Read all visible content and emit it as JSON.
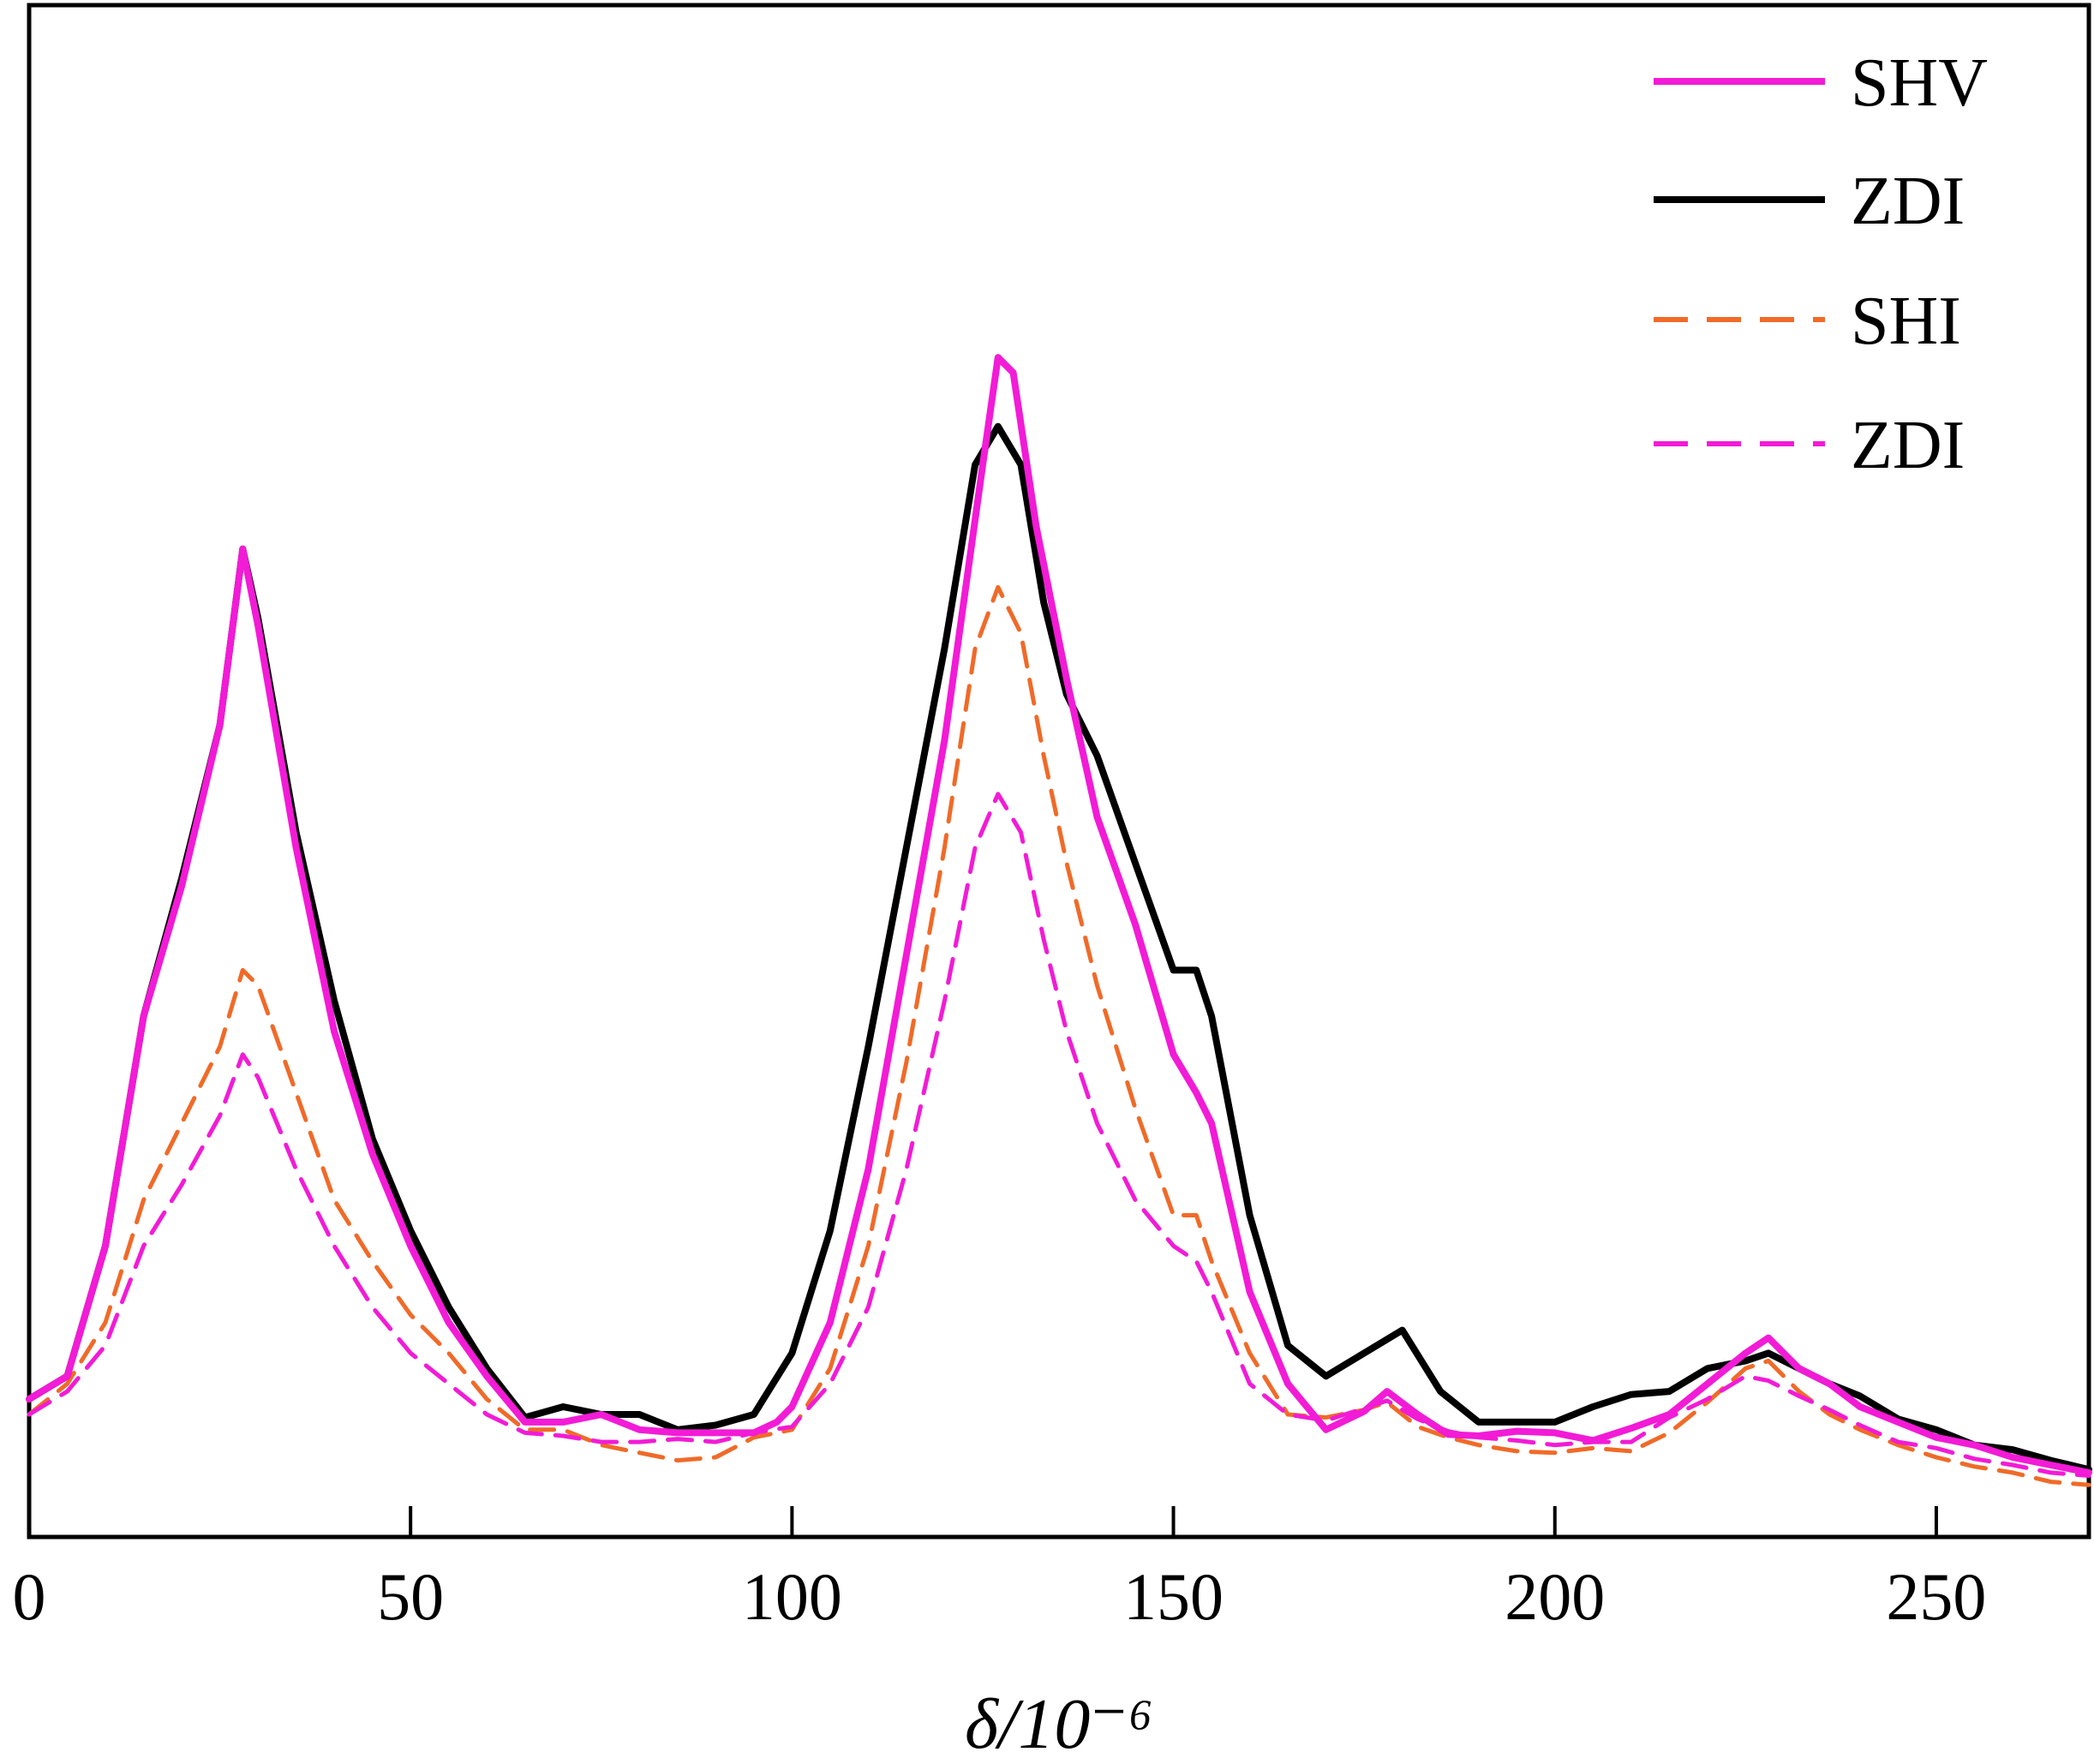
{
  "chart_data": {
    "type": "line",
    "title": "",
    "xlabel": "δ/10⁻⁶",
    "ylabel": "",
    "xlim": [
      0,
      270
    ],
    "ylim": [
      0,
      100
    ],
    "xticks": [
      0,
      50,
      100,
      150,
      200,
      250
    ],
    "x_tick_labels": [
      "0",
      "50",
      "100",
      "150",
      "200",
      "250"
    ],
    "grid": false,
    "legend_position": "top-right",
    "series": [
      {
        "name": "SHV",
        "color": "#f21bd6",
        "style": "solid",
        "points": [
          [
            0,
            9
          ],
          [
            5,
            10.5
          ],
          [
            10,
            19
          ],
          [
            15,
            34
          ],
          [
            20,
            42.5
          ],
          [
            25,
            53
          ],
          [
            28,
            64.5
          ],
          [
            30,
            59.5
          ],
          [
            35,
            45
          ],
          [
            40,
            33
          ],
          [
            45,
            25
          ],
          [
            50,
            19
          ],
          [
            55,
            14
          ],
          [
            60,
            10.5
          ],
          [
            65,
            7.5
          ],
          [
            70,
            7.5
          ],
          [
            75,
            8
          ],
          [
            80,
            7
          ],
          [
            85,
            6.8
          ],
          [
            90,
            6.8
          ],
          [
            95,
            6.8
          ],
          [
            98,
            7.5
          ],
          [
            100,
            8.5
          ],
          [
            105,
            14
          ],
          [
            110,
            24
          ],
          [
            115,
            38
          ],
          [
            120,
            52
          ],
          [
            125,
            70
          ],
          [
            127,
            77
          ],
          [
            129,
            76
          ],
          [
            132,
            66
          ],
          [
            136,
            56
          ],
          [
            140,
            47
          ],
          [
            145,
            40
          ],
          [
            150,
            31.5
          ],
          [
            153,
            29
          ],
          [
            155,
            27
          ],
          [
            160,
            16
          ],
          [
            165,
            10
          ],
          [
            170,
            7
          ],
          [
            175,
            8.2
          ],
          [
            178,
            9.5
          ],
          [
            182,
            8
          ],
          [
            186,
            6.7
          ],
          [
            190,
            6.6
          ],
          [
            195,
            6.9
          ],
          [
            200,
            6.8
          ],
          [
            205,
            6.3
          ],
          [
            210,
            7.1
          ],
          [
            215,
            8
          ],
          [
            220,
            10
          ],
          [
            225,
            12
          ],
          [
            228,
            13
          ],
          [
            232,
            11
          ],
          [
            236,
            10
          ],
          [
            240,
            8.5
          ],
          [
            245,
            7.5
          ],
          [
            250,
            6.5
          ],
          [
            255,
            6
          ],
          [
            260,
            5.2
          ],
          [
            265,
            4.7
          ],
          [
            270,
            4.2
          ]
        ]
      },
      {
        "name": "ZDI",
        "color": "#000000",
        "style": "solid",
        "points": [
          [
            0,
            9
          ],
          [
            5,
            10.5
          ],
          [
            10,
            19
          ],
          [
            15,
            34
          ],
          [
            20,
            43
          ],
          [
            25,
            53
          ],
          [
            28,
            64.5
          ],
          [
            30,
            60
          ],
          [
            35,
            46
          ],
          [
            40,
            35
          ],
          [
            45,
            26
          ],
          [
            50,
            20
          ],
          [
            55,
            15
          ],
          [
            60,
            11
          ],
          [
            65,
            7.8
          ],
          [
            70,
            8.5
          ],
          [
            75,
            8
          ],
          [
            80,
            8
          ],
          [
            85,
            7
          ],
          [
            90,
            7.3
          ],
          [
            95,
            8
          ],
          [
            100,
            12
          ],
          [
            105,
            20
          ],
          [
            110,
            32
          ],
          [
            115,
            45
          ],
          [
            120,
            58
          ],
          [
            124,
            70
          ],
          [
            127,
            72.5
          ],
          [
            130,
            70
          ],
          [
            133,
            61
          ],
          [
            136,
            55
          ],
          [
            140,
            51
          ],
          [
            145,
            44
          ],
          [
            150,
            37
          ],
          [
            153,
            37
          ],
          [
            155,
            34
          ],
          [
            160,
            21
          ],
          [
            165,
            12.5
          ],
          [
            170,
            10.5
          ],
          [
            175,
            12
          ],
          [
            180,
            13.5
          ],
          [
            185,
            9.5
          ],
          [
            190,
            7.5
          ],
          [
            195,
            7.5
          ],
          [
            200,
            7.5
          ],
          [
            205,
            8.5
          ],
          [
            210,
            9.3
          ],
          [
            215,
            9.5
          ],
          [
            220,
            11
          ],
          [
            225,
            11.5
          ],
          [
            228,
            12
          ],
          [
            232,
            11
          ],
          [
            236,
            10
          ],
          [
            240,
            9.2
          ],
          [
            245,
            7.7
          ],
          [
            250,
            7
          ],
          [
            255,
            6
          ],
          [
            260,
            5.7
          ],
          [
            265,
            5
          ],
          [
            270,
            4.4
          ]
        ]
      },
      {
        "name": "SHI",
        "color": "#f06a28",
        "style": "dashed",
        "points": [
          [
            0,
            8
          ],
          [
            5,
            10
          ],
          [
            10,
            14
          ],
          [
            15,
            22
          ],
          [
            20,
            27
          ],
          [
            25,
            32
          ],
          [
            28,
            37
          ],
          [
            30,
            36
          ],
          [
            35,
            29
          ],
          [
            40,
            22
          ],
          [
            45,
            18
          ],
          [
            50,
            14.5
          ],
          [
            55,
            12
          ],
          [
            60,
            9
          ],
          [
            65,
            7
          ],
          [
            70,
            7
          ],
          [
            75,
            6
          ],
          [
            80,
            5.5
          ],
          [
            85,
            5
          ],
          [
            90,
            5.2
          ],
          [
            95,
            6.5
          ],
          [
            100,
            7
          ],
          [
            105,
            11
          ],
          [
            110,
            19
          ],
          [
            115,
            31
          ],
          [
            120,
            45
          ],
          [
            124,
            58
          ],
          [
            127,
            62
          ],
          [
            130,
            59
          ],
          [
            133,
            51
          ],
          [
            136,
            44
          ],
          [
            140,
            36
          ],
          [
            145,
            28
          ],
          [
            150,
            21
          ],
          [
            153,
            21
          ],
          [
            155,
            18
          ],
          [
            160,
            12
          ],
          [
            165,
            8
          ],
          [
            170,
            7.8
          ],
          [
            175,
            8.3
          ],
          [
            178,
            8.8
          ],
          [
            182,
            7.2
          ],
          [
            186,
            6.5
          ],
          [
            190,
            6
          ],
          [
            195,
            5.6
          ],
          [
            200,
            5.5
          ],
          [
            205,
            5.8
          ],
          [
            210,
            5.6
          ],
          [
            215,
            6.8
          ],
          [
            220,
            8.8
          ],
          [
            225,
            11
          ],
          [
            228,
            11.5
          ],
          [
            232,
            9.5
          ],
          [
            236,
            8
          ],
          [
            240,
            7
          ],
          [
            245,
            6
          ],
          [
            250,
            5.2
          ],
          [
            255,
            4.6
          ],
          [
            260,
            4.2
          ],
          [
            265,
            3.6
          ],
          [
            270,
            3.4
          ]
        ]
      },
      {
        "name": "ZDI",
        "color": "#f21bd6",
        "style": "dashed",
        "points": [
          [
            0,
            8
          ],
          [
            5,
            9.5
          ],
          [
            10,
            12.5
          ],
          [
            15,
            19
          ],
          [
            20,
            23
          ],
          [
            25,
            27.5
          ],
          [
            28,
            31.5
          ],
          [
            30,
            30
          ],
          [
            35,
            24
          ],
          [
            40,
            19
          ],
          [
            45,
            15
          ],
          [
            50,
            12
          ],
          [
            55,
            10
          ],
          [
            60,
            8
          ],
          [
            65,
            6.8
          ],
          [
            70,
            6.6
          ],
          [
            75,
            6.2
          ],
          [
            80,
            6.2
          ],
          [
            85,
            6.4
          ],
          [
            90,
            6.2
          ],
          [
            95,
            6.8
          ],
          [
            100,
            7.2
          ],
          [
            105,
            10
          ],
          [
            110,
            15
          ],
          [
            115,
            24
          ],
          [
            120,
            35
          ],
          [
            124,
            45
          ],
          [
            127,
            48.5
          ],
          [
            130,
            46
          ],
          [
            133,
            39
          ],
          [
            136,
            33
          ],
          [
            140,
            27
          ],
          [
            145,
            22
          ],
          [
            150,
            19
          ],
          [
            153,
            18
          ],
          [
            155,
            16
          ],
          [
            160,
            10
          ],
          [
            165,
            8
          ],
          [
            170,
            7.6
          ],
          [
            175,
            8.4
          ],
          [
            178,
            8.9
          ],
          [
            182,
            7.7
          ],
          [
            186,
            6.9
          ],
          [
            190,
            6.5
          ],
          [
            195,
            6.3
          ],
          [
            200,
            6
          ],
          [
            205,
            6.2
          ],
          [
            210,
            6.2
          ],
          [
            215,
            7.8
          ],
          [
            220,
            9
          ],
          [
            225,
            10.5
          ],
          [
            228,
            10.2
          ],
          [
            232,
            9.2
          ],
          [
            236,
            8.3
          ],
          [
            240,
            7.3
          ],
          [
            245,
            6.2
          ],
          [
            250,
            5.8
          ],
          [
            255,
            5.1
          ],
          [
            260,
            4.7
          ],
          [
            265,
            4.2
          ],
          [
            270,
            4
          ]
        ]
      }
    ]
  }
}
